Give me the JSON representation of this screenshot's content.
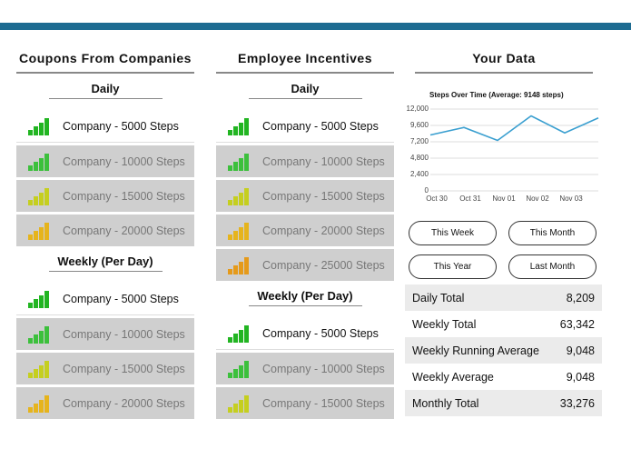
{
  "columns": [
    {
      "title": "Coupons From Companies",
      "sections": [
        {
          "title": "Daily",
          "items": [
            {
              "label": "Company - 5000 Steps",
              "active": true,
              "icon_color": "#22b522"
            },
            {
              "label": "Company - 10000 Steps",
              "active": false,
              "icon_color": "#3cc03c"
            },
            {
              "label": "Company - 15000 Steps",
              "active": false,
              "icon_color": "#c5cf1f"
            },
            {
              "label": "Company - 20000 Steps",
              "active": false,
              "icon_color": "#e6b41c"
            }
          ]
        },
        {
          "title": "Weekly (Per Day)",
          "items": [
            {
              "label": "Company - 5000 Steps",
              "active": true,
              "icon_color": "#22b522"
            },
            {
              "label": "Company - 10000 Steps",
              "active": false,
              "icon_color": "#3cc03c"
            },
            {
              "label": "Company - 15000 Steps",
              "active": false,
              "icon_color": "#c5cf1f"
            },
            {
              "label": "Company - 20000 Steps",
              "active": false,
              "icon_color": "#e6b41c"
            }
          ]
        }
      ]
    },
    {
      "title": "Employee Incentives",
      "sections": [
        {
          "title": "Daily",
          "items": [
            {
              "label": "Company - 5000 Steps",
              "active": true,
              "icon_color": "#22b522"
            },
            {
              "label": "Company - 10000 Steps",
              "active": false,
              "icon_color": "#3cc03c"
            },
            {
              "label": "Company - 15000 Steps",
              "active": false,
              "icon_color": "#c5cf1f"
            },
            {
              "label": "Company - 20000 Steps",
              "active": false,
              "icon_color": "#e6b41c"
            },
            {
              "label": "Company - 25000 Steps",
              "active": false,
              "icon_color": "#e59a1a"
            }
          ]
        },
        {
          "title": "Weekly (Per Day)",
          "items": [
            {
              "label": "Company - 5000 Steps",
              "active": true,
              "icon_color": "#22b522"
            },
            {
              "label": "Company - 10000 Steps",
              "active": false,
              "icon_color": "#3cc03c"
            },
            {
              "label": "Company - 15000 Steps",
              "active": false,
              "icon_color": "#c5cf1f"
            }
          ]
        }
      ]
    }
  ],
  "your_data": {
    "title": "Your Data",
    "buttons": [
      "This Week",
      "This Month",
      "This Year",
      "Last Month"
    ],
    "stats": [
      {
        "label": "Daily Total",
        "value": "8,209"
      },
      {
        "label": "Weekly Total",
        "value": "63,342"
      },
      {
        "label": "Weekly Running Average",
        "value": "9,048"
      },
      {
        "label": "Weekly Average",
        "value": "9,048"
      },
      {
        "label": "Monthly Total",
        "value": "33,276"
      }
    ]
  },
  "chart_data": {
    "type": "line",
    "title": "Steps Over Time (Average: 9148 steps)",
    "categories": [
      "Oct 30",
      "Oct 31",
      "Nov 01",
      "Nov 02",
      "Nov 03",
      null
    ],
    "values": [
      8200,
      9300,
      7400,
      11000,
      8500,
      10700
    ],
    "color": "#3a9fd0",
    "ylim": [
      0,
      12000
    ],
    "yticks": [
      0,
      {
        "value": 2400,
        "label": "2,400"
      },
      {
        "value": 4800,
        "label": "4,800"
      },
      {
        "value": 7200,
        "label": "7,200"
      },
      {
        "value": 9600,
        "label": "9,600"
      },
      {
        "value": 12000,
        "label": "12,000"
      }
    ],
    "grid": true
  }
}
